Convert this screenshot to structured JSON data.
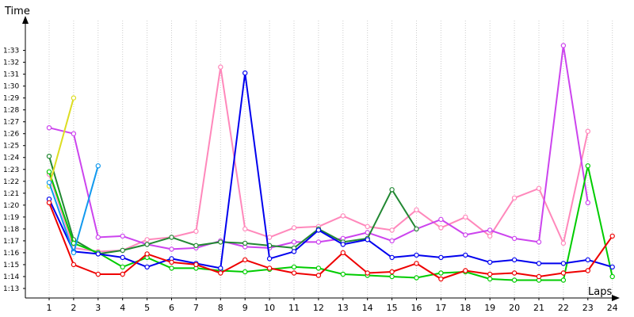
{
  "chart_data": {
    "type": "line",
    "xlabel": "Laps",
    "ylabel": "Time",
    "x": [
      1,
      2,
      3,
      4,
      5,
      6,
      7,
      8,
      9,
      10,
      11,
      12,
      13,
      14,
      15,
      16,
      17,
      18,
      19,
      20,
      21,
      22,
      23,
      24
    ],
    "x_tick_labels": [
      "1",
      "2",
      "3",
      "4",
      "5",
      "6",
      "7",
      "8",
      "9",
      "10",
      "11",
      "12",
      "13",
      "14",
      "15",
      "16",
      "17",
      "18",
      "19",
      "20",
      "21",
      "22",
      "23",
      "24"
    ],
    "y_tick_labels": [
      "1:13",
      "1:14",
      "1:15",
      "1:16",
      "1:17",
      "1:18",
      "1:19",
      "1:20",
      "1:21",
      "1:22",
      "1:23",
      "1:24",
      "1:25",
      "1:26",
      "1:27",
      "1:28",
      "1:29",
      "1:30",
      "1:31",
      "1:32",
      "1:33"
    ],
    "y_tick_values": [
      73,
      74,
      75,
      76,
      77,
      78,
      79,
      80,
      81,
      82,
      83,
      84,
      85,
      86,
      87,
      88,
      89,
      90,
      91,
      92,
      93
    ],
    "ylim": [
      72.2,
      95.5
    ],
    "grid": "vertical",
    "legend": "none",
    "series": [
      {
        "color": "#ff88bb",
        "values": [
          82.6,
          76.4,
          76.1,
          76.2,
          77.1,
          77.3,
          77.8,
          91.6,
          78.0,
          77.3,
          78.1,
          78.2,
          79.1,
          78.2,
          77.9,
          79.6,
          78.1,
          79.0,
          77.4,
          80.6,
          81.4,
          76.8,
          86.2,
          null
        ]
      },
      {
        "color": "#cc44ee",
        "values": [
          86.5,
          86.0,
          77.3,
          77.4,
          76.7,
          76.3,
          76.4,
          77.0,
          76.5,
          76.4,
          76.9,
          76.9,
          77.2,
          77.7,
          77.0,
          78.0,
          78.8,
          77.5,
          77.9,
          77.2,
          76.9,
          93.4,
          80.2,
          null
        ]
      },
      {
        "color": "#228833",
        "values": [
          84.1,
          77.1,
          75.9,
          76.2,
          76.7,
          77.3,
          76.6,
          76.9,
          76.8,
          76.6,
          76.4,
          78.0,
          76.9,
          77.2,
          81.3,
          78.0,
          null,
          null,
          null,
          null,
          null,
          null,
          null,
          null
        ]
      },
      {
        "color": "#00cc00",
        "values": [
          82.8,
          76.8,
          76.0,
          74.8,
          75.6,
          74.7,
          74.7,
          74.5,
          74.4,
          74.6,
          74.8,
          74.7,
          74.2,
          74.1,
          74.0,
          73.9,
          74.3,
          74.4,
          73.8,
          73.7,
          73.7,
          73.7,
          83.3,
          74.0
        ]
      },
      {
        "color": "#0000ee",
        "values": [
          80.5,
          76.1,
          75.9,
          75.6,
          74.8,
          75.5,
          75.1,
          74.7,
          91.1,
          75.5,
          76.1,
          77.9,
          76.7,
          77.1,
          75.6,
          75.8,
          75.6,
          75.8,
          75.2,
          75.4,
          75.1,
          75.1,
          75.4,
          74.8
        ]
      },
      {
        "color": "#ee0000",
        "values": [
          80.2,
          75.0,
          74.2,
          74.2,
          75.9,
          75.2,
          75.0,
          74.3,
          75.4,
          74.7,
          74.3,
          74.1,
          76.0,
          74.3,
          74.4,
          75.1,
          73.8,
          74.5,
          74.2,
          74.3,
          74.0,
          74.3,
          74.5,
          77.4
        ]
      },
      {
        "color": "#dddd22",
        "values": [
          81.6,
          89.0,
          null,
          null,
          null,
          null,
          null,
          null,
          null,
          null,
          null,
          null,
          null,
          null,
          null,
          null,
          null,
          null,
          null,
          null,
          null,
          null,
          null,
          null
        ]
      },
      {
        "color": "#1199ee",
        "values": [
          81.9,
          76.0,
          83.3,
          null,
          null,
          null,
          null,
          null,
          null,
          null,
          null,
          null,
          null,
          null,
          null,
          null,
          null,
          null,
          null,
          null,
          null,
          null,
          null,
          null
        ]
      }
    ]
  }
}
